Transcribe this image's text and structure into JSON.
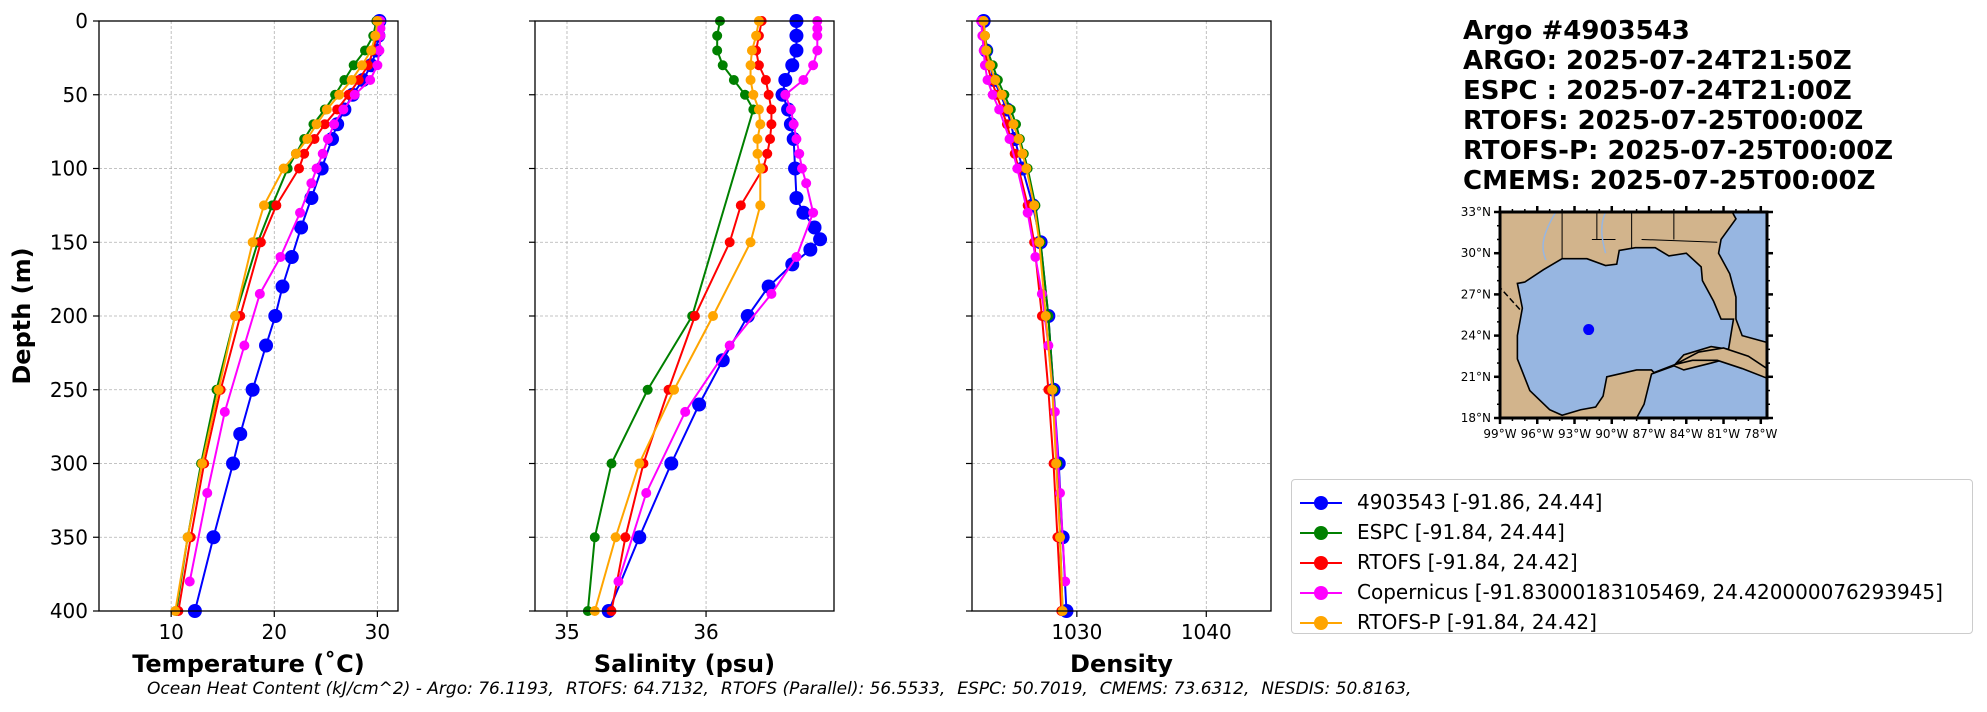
{
  "info": {
    "title": "Argo #4903543",
    "lines": [
      "ARGO: 2025-07-24T21:50Z",
      "ESPC : 2025-07-24T21:00Z",
      "RTOFS: 2025-07-25T00:00Z",
      "RTOFS-P: 2025-07-25T00:00Z",
      "CMEMS: 2025-07-25T00:00Z"
    ]
  },
  "legend": [
    {
      "label": "4903543 [-91.86, 24.44]",
      "color": "#0000ff"
    },
    {
      "label": "ESPC [-91.84, 24.44]",
      "color": "#008000"
    },
    {
      "label": "RTOFS [-91.84, 24.42]",
      "color": "#ff0000"
    },
    {
      "label": "Copernicus [-91.83000183105469, 24.420000076293945]",
      "color": "#ff00ff"
    },
    {
      "label": "RTOFS-P [-91.84, 24.42]",
      "color": "#ffa500"
    }
  ],
  "footer": {
    "prefix": "Ocean Heat Content (kJ/cm^2) - ",
    "items": [
      "Argo: 76.1193,",
      "RTOFS: 64.7132,",
      "RTOFS (Parallel): 56.5533,",
      "ESPC: 50.7019,",
      "CMEMS: 73.6312,",
      "NESDIS: 50.8163,"
    ]
  },
  "chart_data": [
    {
      "type": "line",
      "xlabel": "Temperature (˚C)",
      "ylabel": "Depth (m)",
      "xlim": [
        3,
        32
      ],
      "ylim": [
        400,
        0
      ],
      "xticks": [
        10,
        20,
        30
      ],
      "xtick_labels": [
        "10",
        "20",
        "30"
      ],
      "yticks": [
        0,
        50,
        100,
        150,
        200,
        250,
        300,
        350,
        400
      ],
      "ytick_labels": [
        "0",
        "50",
        "100",
        "150",
        "200",
        "250",
        "300",
        "350",
        "400"
      ],
      "grid": true,
      "series": [
        {
          "name": "4903543",
          "color": "#0000ff",
          "marker_size": 7,
          "depth": [
            0,
            10,
            20,
            30,
            40,
            50,
            60,
            70,
            80,
            100,
            120,
            140,
            160,
            180,
            200,
            220,
            250,
            280,
            300,
            350,
            400
          ],
          "values": [
            30.2,
            30.1,
            29.9,
            29.4,
            28.6,
            27.6,
            26.8,
            26.1,
            25.6,
            24.6,
            23.6,
            22.6,
            21.7,
            20.8,
            20.1,
            19.2,
            17.9,
            16.7,
            16.0,
            14.1,
            12.3
          ]
        },
        {
          "name": "ESPC",
          "color": "#008000",
          "marker_size": 5,
          "depth": [
            0,
            10,
            20,
            30,
            40,
            50,
            60,
            70,
            80,
            90,
            100,
            125,
            150,
            200,
            250,
            300,
            350,
            400
          ],
          "values": [
            29.9,
            29.6,
            28.8,
            27.7,
            26.8,
            25.9,
            24.9,
            23.8,
            22.9,
            22.1,
            21.3,
            19.8,
            18.4,
            16.2,
            14.4,
            12.9,
            11.6,
            10.5
          ]
        },
        {
          "name": "RTOFS",
          "color": "#ff0000",
          "marker_size": 5,
          "depth": [
            0,
            10,
            20,
            30,
            40,
            50,
            60,
            70,
            80,
            90,
            100,
            125,
            150,
            200,
            250,
            300,
            350,
            400
          ],
          "values": [
            30.0,
            29.9,
            29.6,
            29.1,
            28.2,
            27.2,
            26.1,
            24.9,
            23.9,
            22.9,
            22.4,
            20.2,
            18.7,
            16.7,
            14.8,
            13.2,
            11.9,
            10.7
          ]
        },
        {
          "name": "Copernicus",
          "color": "#ff00ff",
          "marker_size": 5,
          "depth": [
            0,
            5,
            10,
            20,
            30,
            40,
            50,
            60,
            70,
            80,
            90,
            100,
            110,
            130,
            160,
            185,
            220,
            265,
            320,
            380
          ],
          "values": [
            30.3,
            30.3,
            30.3,
            30.2,
            30.0,
            29.3,
            27.8,
            26.7,
            25.8,
            25.2,
            24.7,
            24.1,
            23.6,
            22.5,
            20.6,
            18.6,
            17.1,
            15.2,
            13.5,
            11.8
          ]
        },
        {
          "name": "RTOFS-P",
          "color": "#ffa500",
          "marker_size": 5,
          "depth": [
            0,
            10,
            20,
            30,
            40,
            50,
            60,
            70,
            80,
            90,
            100,
            125,
            150,
            200,
            250,
            300,
            350,
            400
          ],
          "values": [
            30.0,
            29.8,
            29.4,
            28.5,
            27.5,
            26.3,
            25.1,
            24.1,
            23.2,
            22.1,
            20.9,
            19.0,
            17.9,
            16.2,
            14.6,
            13.0,
            11.6,
            10.4
          ]
        }
      ]
    },
    {
      "type": "line",
      "xlabel": "Salinity (psu)",
      "xlim": [
        34.77,
        36.92
      ],
      "ylim": [
        400,
        0
      ],
      "xticks": [
        35,
        36
      ],
      "xtick_labels": [
        "35",
        "36"
      ],
      "yticks": [
        0,
        50,
        100,
        150,
        200,
        250,
        300,
        350,
        400
      ],
      "grid": true,
      "series": [
        {
          "name": "4903543",
          "color": "#0000ff",
          "marker_size": 7,
          "depth": [
            0,
            10,
            20,
            30,
            40,
            50,
            60,
            70,
            80,
            100,
            120,
            130,
            140,
            148,
            155,
            165,
            180,
            200,
            230,
            260,
            300,
            350,
            400
          ],
          "values": [
            36.65,
            36.65,
            36.65,
            36.62,
            36.57,
            36.55,
            36.59,
            36.61,
            36.63,
            36.64,
            36.65,
            36.7,
            36.78,
            36.82,
            36.75,
            36.62,
            36.45,
            36.3,
            36.12,
            35.95,
            35.75,
            35.52,
            35.3
          ]
        },
        {
          "name": "ESPC",
          "color": "#008000",
          "marker_size": 5,
          "depth": [
            0,
            10,
            20,
            30,
            40,
            50,
            60,
            200,
            250,
            300,
            350,
            400
          ],
          "values": [
            36.1,
            36.08,
            36.08,
            36.12,
            36.2,
            36.28,
            36.34,
            35.9,
            35.58,
            35.32,
            35.2,
            35.15
          ]
        },
        {
          "name": "RTOFS",
          "color": "#ff0000",
          "marker_size": 5,
          "depth": [
            0,
            10,
            20,
            30,
            40,
            50,
            60,
            70,
            80,
            90,
            100,
            125,
            150,
            200,
            250,
            300,
            350,
            400
          ],
          "values": [
            36.4,
            36.38,
            36.36,
            36.38,
            36.43,
            36.45,
            36.47,
            36.47,
            36.46,
            36.44,
            36.41,
            36.25,
            36.17,
            35.92,
            35.73,
            35.55,
            35.42,
            35.32
          ]
        },
        {
          "name": "Copernicus",
          "color": "#ff00ff",
          "marker_size": 5,
          "depth": [
            0,
            5,
            10,
            20,
            30,
            40,
            50,
            60,
            70,
            80,
            90,
            100,
            110,
            130,
            160,
            185,
            220,
            265,
            320,
            380
          ],
          "values": [
            36.8,
            36.8,
            36.8,
            36.8,
            36.77,
            36.7,
            36.57,
            36.61,
            36.63,
            36.65,
            36.67,
            36.69,
            36.72,
            36.77,
            36.65,
            36.47,
            36.17,
            35.85,
            35.57,
            35.37
          ]
        },
        {
          "name": "RTOFS-P",
          "color": "#ffa500",
          "marker_size": 5,
          "depth": [
            0,
            10,
            20,
            30,
            40,
            50,
            60,
            70,
            80,
            90,
            100,
            125,
            150,
            200,
            250,
            300,
            350,
            400
          ],
          "values": [
            36.38,
            36.36,
            36.33,
            36.32,
            36.32,
            36.34,
            36.38,
            36.39,
            36.37,
            36.37,
            36.39,
            36.39,
            36.32,
            36.05,
            35.77,
            35.52,
            35.35,
            35.2
          ]
        }
      ]
    },
    {
      "type": "line",
      "xlabel": "Density",
      "xlim": [
        1021.9,
        1045.0
      ],
      "ylim": [
        400,
        0
      ],
      "xticks": [
        1030,
        1040
      ],
      "xtick_labels": [
        "1030",
        "1040"
      ],
      "yticks": [
        0,
        50,
        100,
        150,
        200,
        250,
        300,
        350,
        400
      ],
      "grid": true,
      "series": [
        {
          "name": "4903543",
          "color": "#0000ff",
          "marker_size": 7,
          "depth": [
            0,
            20,
            40,
            60,
            80,
            100,
            125,
            150,
            200,
            250,
            300,
            350,
            400
          ],
          "values": [
            1022.8,
            1023.0,
            1023.6,
            1024.6,
            1025.2,
            1025.8,
            1026.6,
            1027.2,
            1027.8,
            1028.2,
            1028.6,
            1028.9,
            1029.2
          ]
        },
        {
          "name": "ESPC",
          "color": "#008000",
          "marker_size": 5,
          "depth": [
            0,
            10,
            20,
            30,
            40,
            50,
            60,
            70,
            80,
            90,
            100,
            125,
            150,
            200,
            250,
            300,
            350,
            400
          ],
          "values": [
            1022.8,
            1022.9,
            1023.1,
            1023.5,
            1023.9,
            1024.4,
            1024.9,
            1025.3,
            1025.6,
            1025.9,
            1026.2,
            1026.8,
            1027.2,
            1027.8,
            1028.2,
            1028.5,
            1028.7,
            1028.9
          ]
        },
        {
          "name": "RTOFS",
          "color": "#ff0000",
          "marker_size": 5,
          "depth": [
            0,
            10,
            20,
            30,
            40,
            50,
            60,
            70,
            80,
            90,
            100,
            125,
            150,
            200,
            250,
            300,
            350,
            400
          ],
          "values": [
            1022.7,
            1022.8,
            1022.9,
            1023.1,
            1023.4,
            1023.8,
            1024.2,
            1024.6,
            1024.9,
            1025.2,
            1025.5,
            1026.2,
            1026.7,
            1027.3,
            1027.8,
            1028.2,
            1028.5,
            1028.8
          ]
        },
        {
          "name": "Copernicus",
          "color": "#ff00ff",
          "marker_size": 5,
          "depth": [
            0,
            10,
            20,
            30,
            40,
            50,
            60,
            80,
            100,
            130,
            160,
            185,
            220,
            265,
            320,
            380
          ],
          "values": [
            1022.6,
            1022.7,
            1022.8,
            1022.9,
            1023.1,
            1023.5,
            1024.0,
            1024.8,
            1025.4,
            1026.2,
            1026.8,
            1027.3,
            1027.8,
            1028.3,
            1028.7,
            1029.1
          ]
        },
        {
          "name": "RTOFS-P",
          "color": "#ffa500",
          "marker_size": 5,
          "depth": [
            0,
            10,
            20,
            30,
            40,
            50,
            60,
            70,
            80,
            90,
            100,
            125,
            150,
            200,
            250,
            300,
            350,
            400
          ],
          "values": [
            1022.8,
            1022.9,
            1023.0,
            1023.3,
            1023.7,
            1024.2,
            1024.7,
            1025.1,
            1025.5,
            1025.8,
            1026.1,
            1026.7,
            1027.1,
            1027.6,
            1028.1,
            1028.4,
            1028.7,
            1028.9
          ]
        }
      ]
    },
    {
      "type": "map",
      "lat_ticks": [
        "33°N",
        "30°N",
        "27°N",
        "24°N",
        "21°N",
        "18°N"
      ],
      "lon_ticks": [
        "99°W",
        "96°W",
        "93°W",
        "90°W",
        "87°W",
        "84°W",
        "81°W",
        "78°W"
      ],
      "lat_range": [
        18,
        33
      ],
      "lon_range": [
        -99,
        -77.5
      ],
      "float_position": {
        "lon": -91.86,
        "lat": 24.44
      },
      "ocean_color": "#97b6e1",
      "land_color": "#d2b48c",
      "float_color": "#0000ff"
    }
  ]
}
